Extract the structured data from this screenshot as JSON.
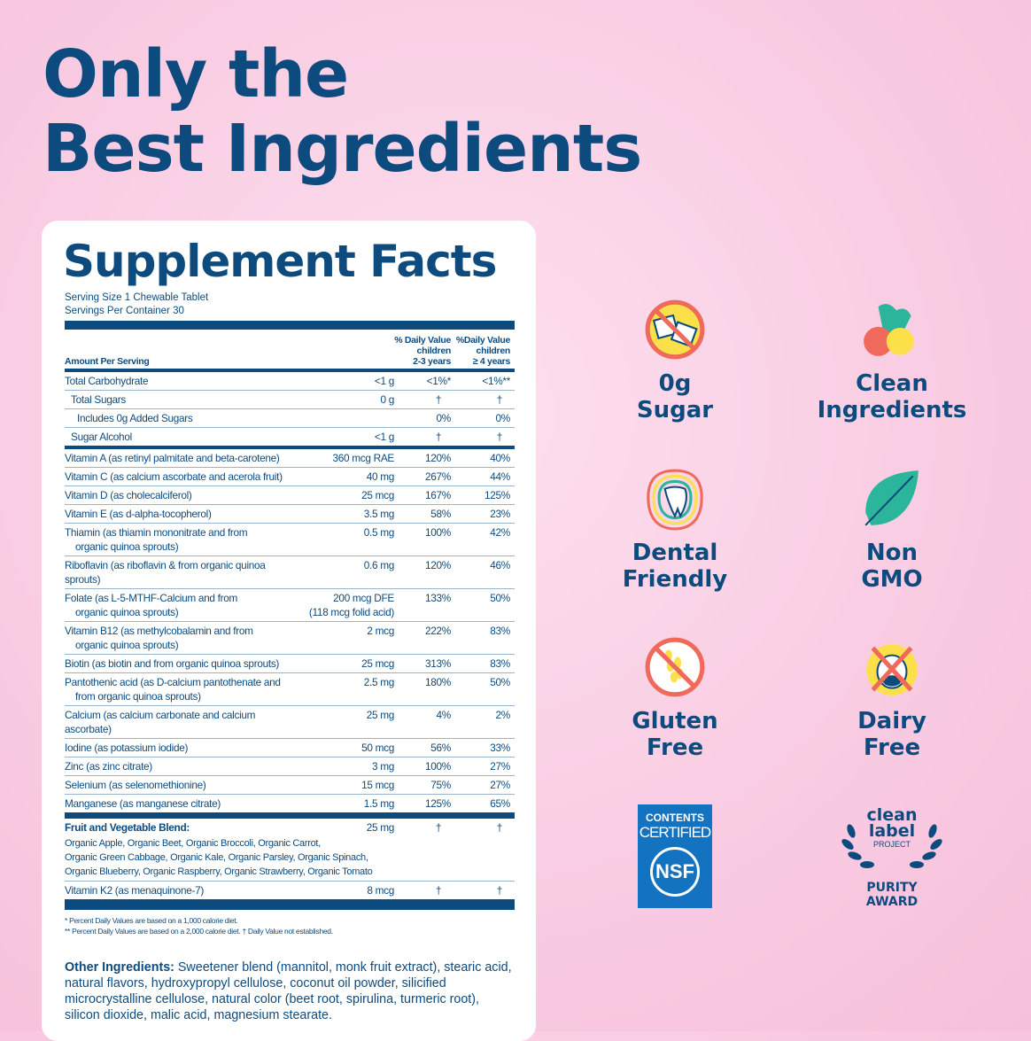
{
  "headline": {
    "line1": "Only the",
    "line2": "Best Ingredients"
  },
  "facts": {
    "title": "Supplement Facts",
    "serving_size": "Serving Size 1 Chewable Tablet",
    "servings_per_container": "Servings Per Container 30",
    "headers": {
      "amount": "Amount Per Serving",
      "col2": [
        "% Daily Value",
        "children",
        "2-3 years"
      ],
      "col3": [
        "%Daily Value",
        "children",
        "≥ 4 years"
      ]
    },
    "rows1": [
      {
        "name": "Total Carbohydrate",
        "indent": 0,
        "amount": "<1 g",
        "dv2": "<1%*",
        "dv4": "<1%**"
      },
      {
        "name": "Total Sugars",
        "indent": 1,
        "amount": "0 g",
        "dv2": "†",
        "dv4": "†"
      },
      {
        "name": "Includes 0g Added Sugars",
        "indent": 2,
        "amount": "",
        "dv2": "0%",
        "dv4": "0%"
      },
      {
        "name": "Sugar Alcohol",
        "indent": 1,
        "amount": "<1 g",
        "dv2": "†",
        "dv4": "†"
      }
    ],
    "rows2": [
      {
        "name": "Vitamin A (as retinyl palmitate and beta-carotene)",
        "amount": "360 mcg RAE",
        "dv2": "120%",
        "dv4": "40%"
      },
      {
        "name": "Vitamin C (as calcium ascorbate and acerola fruit)",
        "amount": "40 mg",
        "dv2": "267%",
        "dv4": "44%"
      },
      {
        "name": "Vitamin D (as cholecalciferol)",
        "amount": "25 mcg",
        "dv2": "167%",
        "dv4": "125%"
      },
      {
        "name": "Vitamin E (as d-alpha-tocopherol)",
        "amount": "3.5 mg",
        "dv2": "58%",
        "dv4": "23%"
      },
      {
        "name": "Thiamin (as thiamin mononitrate and from",
        "name2": "organic quinoa sprouts)",
        "amount": "0.5 mg",
        "dv2": "100%",
        "dv4": "42%"
      },
      {
        "name": "Riboflavin (as riboflavin & from organic quinoa sprouts)",
        "amount": "0.6 mg",
        "dv2": "120%",
        "dv4": "46%"
      },
      {
        "name": "Folate (as L-5-MTHF-Calcium and from",
        "name2": "organic quinoa sprouts)",
        "amount": "200 mcg DFE",
        "amount2": "(118 mcg folid acid)",
        "dv2": "133%",
        "dv4": "50%"
      },
      {
        "name": "Vitamin B12 (as methylcobalamin and from",
        "name2": "organic quinoa sprouts)",
        "amount": "2 mcg",
        "dv2": "222%",
        "dv4": "83%"
      },
      {
        "name": "Biotin (as biotin and from organic quinoa sprouts)",
        "amount": "25 mcg",
        "dv2": "313%",
        "dv4": "83%"
      },
      {
        "name": "Pantothenic acid (as D-calcium pantothenate and",
        "name2": "from organic quinoa sprouts)",
        "amount": "2.5 mg",
        "dv2": "180%",
        "dv4": "50%"
      },
      {
        "name": "Calcium (as calcium carbonate and calcium ascorbate)",
        "amount": "25 mg",
        "dv2": "4%",
        "dv4": "2%"
      },
      {
        "name": "Iodine (as potassium iodide)",
        "amount": "50 mcg",
        "dv2": "56%",
        "dv4": "33%"
      },
      {
        "name": "Zinc (as zinc citrate)",
        "amount": "3 mg",
        "dv2": "100%",
        "dv4": "27%"
      },
      {
        "name": "Selenium (as selenomethionine)",
        "amount": "15 mcg",
        "dv2": "75%",
        "dv4": "27%"
      },
      {
        "name": "Manganese (as manganese citrate)",
        "amount": "1.5 mg",
        "dv2": "125%",
        "dv4": "65%"
      }
    ],
    "blend": {
      "name": "Fruit and Vegetable Blend:",
      "lines": [
        "Organic Apple, Organic Beet, Organic Broccoli, Organic Carrot,",
        "Organic Green Cabbage, Organic Kale, Organic Parsley, Organic Spinach,",
        "Organic Blueberry, Organic Raspberry, Organic Strawberry, Organic Tomato"
      ],
      "amount": "25 mg",
      "dv2": "†",
      "dv4": "†"
    },
    "k2": {
      "name": "Vitamin K2 (as menaquinone-7)",
      "amount": "8 mcg",
      "dv2": "†",
      "dv4": "†"
    },
    "footnotes": [
      "* Percent Daily Values are based on a 1,000 calorie diet.",
      "** Percent Daily Values are based on a 2,000 calorie diet.  † Daily Value not established."
    ],
    "other_label": "Other Ingredients:",
    "other_text": " Sweetener blend (mannitol, monk fruit extract), stearic acid, natural flavors, hydroxypropyl cellulose, coconut oil powder, silicified microcrystalline cellulose, natural color (beet root, spirulina, turmeric root), silicon dioxide, malic acid, magnesium stearate."
  },
  "badges": [
    {
      "icon": "no-sugar-icon",
      "lines": [
        "0g",
        "Sugar"
      ]
    },
    {
      "icon": "fruit-vegetable-icon",
      "lines": [
        "Clean",
        "Ingredients"
      ]
    },
    {
      "icon": "happy-tooth-icon",
      "lines": [
        "Dental",
        "Friendly"
      ]
    },
    {
      "icon": "leaf-icon",
      "lines": [
        "Non",
        "GMO"
      ]
    },
    {
      "icon": "no-wheat-icon",
      "lines": [
        "Gluten",
        "Free"
      ]
    },
    {
      "icon": "no-cow-icon",
      "lines": [
        "Dairy",
        "Free"
      ]
    }
  ],
  "certs": {
    "nsf": {
      "line1": "CONTENTS",
      "line2": "CERTIFIED",
      "logo": "NSF"
    },
    "clean_label": {
      "line1": "clean",
      "line2": "label",
      "line3": "PROJECT",
      "award1": "PURITY",
      "award2": "AWARD"
    }
  },
  "colors": {
    "navy": "#0d4b7e",
    "coral": "#ef6a5a",
    "yellow": "#fbe04a",
    "green": "#2bb59a",
    "nsf_blue": "#1473c0"
  }
}
